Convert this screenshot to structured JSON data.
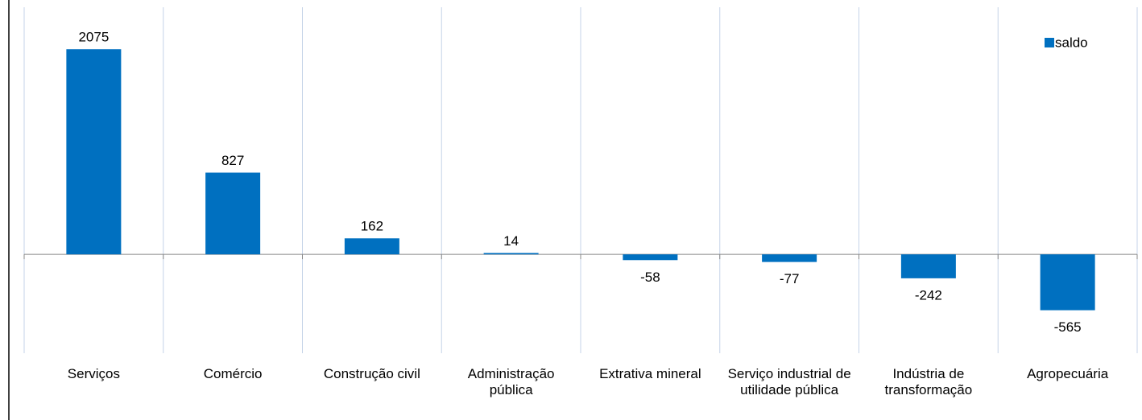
{
  "chart_data": {
    "type": "bar",
    "categories": [
      "Serviços",
      "Comércio",
      "Construção civil",
      "Administração pública",
      "Extrativa mineral",
      "Serviço industrial de utilidade pública",
      "Indústria de transformação",
      "Agropecuária"
    ],
    "series": [
      {
        "name": "saldo",
        "color": "#0070c0",
        "values": [
          2075,
          827,
          162,
          14,
          -58,
          -77,
          -242,
          -565
        ]
      }
    ],
    "ylim": [
      -1000,
      2500
    ],
    "grid": true,
    "legend": "top-right"
  }
}
